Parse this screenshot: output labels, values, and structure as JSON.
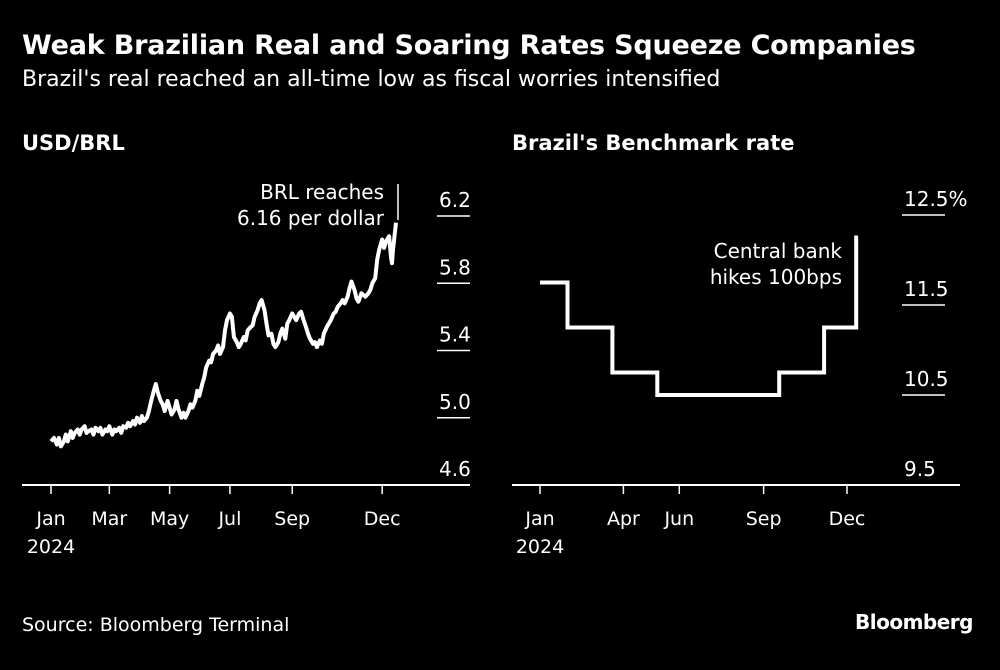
{
  "header": {
    "title": "Weak Brazilian Real and Soaring Rates Squeeze Companies",
    "subtitle": "Brazil's real reached an all-time low as fiscal worries intensified"
  },
  "footer": {
    "source": "Source: Bloomberg Terminal",
    "brand": "Bloomberg"
  },
  "colors": {
    "background": "#000000",
    "line": "#ffffff",
    "text": "#ffffff"
  },
  "chart_data": [
    {
      "id": "usd-brl",
      "type": "line",
      "title": "USD/BRL",
      "xlabel": "",
      "ylabel": "",
      "ylim": [
        4.6,
        6.2
      ],
      "y_ticks": [
        "6.2",
        "5.8",
        "5.4",
        "5.0",
        "4.6"
      ],
      "x_ticks": [
        {
          "label": "Jan",
          "sub": "2024",
          "date": "2024-01-02"
        },
        {
          "label": "Mar",
          "sub": "",
          "date": "2024-03-01"
        },
        {
          "label": "May",
          "sub": "",
          "date": "2024-05-01"
        },
        {
          "label": "Jul",
          "sub": "",
          "date": "2024-07-01"
        },
        {
          "label": "Sep",
          "sub": "",
          "date": "2024-09-02"
        },
        {
          "label": "Dec",
          "sub": "",
          "date": "2024-12-02"
        }
      ],
      "grid": false,
      "annotation": {
        "line1": "BRL reaches",
        "line2": "6.16 per dollar"
      },
      "series": [
        {
          "points": [
            [
              "2024-01-02",
              4.86
            ],
            [
              "2024-01-05",
              4.88
            ],
            [
              "2024-01-08",
              4.84
            ],
            [
              "2024-01-10",
              4.88
            ],
            [
              "2024-01-12",
              4.83
            ],
            [
              "2024-01-15",
              4.86
            ],
            [
              "2024-01-17",
              4.9
            ],
            [
              "2024-01-19",
              4.86
            ],
            [
              "2024-01-22",
              4.92
            ],
            [
              "2024-01-24",
              4.88
            ],
            [
              "2024-01-26",
              4.91
            ],
            [
              "2024-01-29",
              4.93
            ],
            [
              "2024-01-31",
              4.9
            ],
            [
              "2024-02-02",
              4.93
            ],
            [
              "2024-02-05",
              4.95
            ],
            [
              "2024-02-07",
              4.91
            ],
            [
              "2024-02-09",
              4.92
            ],
            [
              "2024-02-12",
              4.93
            ],
            [
              "2024-02-14",
              4.9
            ],
            [
              "2024-02-16",
              4.94
            ],
            [
              "2024-02-19",
              4.92
            ],
            [
              "2024-02-21",
              4.94
            ],
            [
              "2024-02-23",
              4.9
            ],
            [
              "2024-02-26",
              4.93
            ],
            [
              "2024-02-28",
              4.92
            ],
            [
              "2024-03-01",
              4.95
            ],
            [
              "2024-03-04",
              4.9
            ],
            [
              "2024-03-06",
              4.93
            ],
            [
              "2024-03-08",
              4.92
            ],
            [
              "2024-03-11",
              4.94
            ],
            [
              "2024-03-13",
              4.91
            ],
            [
              "2024-03-15",
              4.95
            ],
            [
              "2024-03-18",
              4.94
            ],
            [
              "2024-03-20",
              4.97
            ],
            [
              "2024-03-22",
              4.95
            ],
            [
              "2024-03-25",
              4.98
            ],
            [
              "2024-03-27",
              4.96
            ],
            [
              "2024-03-29",
              5.0
            ],
            [
              "2024-04-01",
              4.97
            ],
            [
              "2024-04-03",
              5.01
            ],
            [
              "2024-04-05",
              4.98
            ],
            [
              "2024-04-08",
              5.0
            ],
            [
              "2024-04-10",
              5.04
            ],
            [
              "2024-04-12",
              5.09
            ],
            [
              "2024-04-15",
              5.16
            ],
            [
              "2024-04-17",
              5.2
            ],
            [
              "2024-04-19",
              5.15
            ],
            [
              "2024-04-22",
              5.1
            ],
            [
              "2024-04-24",
              5.08
            ],
            [
              "2024-04-26",
              5.04
            ],
            [
              "2024-04-29",
              5.1
            ],
            [
              "2024-05-01",
              5.06
            ],
            [
              "2024-05-03",
              5.02
            ],
            [
              "2024-05-06",
              5.05
            ],
            [
              "2024-05-08",
              5.1
            ],
            [
              "2024-05-10",
              5.05
            ],
            [
              "2024-05-13",
              5.0
            ],
            [
              "2024-05-15",
              5.03
            ],
            [
              "2024-05-17",
              5.0
            ],
            [
              "2024-05-20",
              5.04
            ],
            [
              "2024-05-22",
              5.08
            ],
            [
              "2024-05-24",
              5.06
            ],
            [
              "2024-05-27",
              5.1
            ],
            [
              "2024-05-29",
              5.16
            ],
            [
              "2024-05-31",
              5.13
            ],
            [
              "2024-06-03",
              5.2
            ],
            [
              "2024-06-05",
              5.24
            ],
            [
              "2024-06-07",
              5.3
            ],
            [
              "2024-06-10",
              5.34
            ],
            [
              "2024-06-12",
              5.33
            ],
            [
              "2024-06-14",
              5.38
            ],
            [
              "2024-06-17",
              5.4
            ],
            [
              "2024-06-19",
              5.43
            ],
            [
              "2024-06-21",
              5.38
            ],
            [
              "2024-06-24",
              5.42
            ],
            [
              "2024-06-26",
              5.52
            ],
            [
              "2024-06-28",
              5.58
            ],
            [
              "2024-07-01",
              5.62
            ],
            [
              "2024-07-03",
              5.6
            ],
            [
              "2024-07-05",
              5.48
            ],
            [
              "2024-07-08",
              5.45
            ],
            [
              "2024-07-10",
              5.42
            ],
            [
              "2024-07-12",
              5.44
            ],
            [
              "2024-07-15",
              5.48
            ],
            [
              "2024-07-17",
              5.46
            ],
            [
              "2024-07-19",
              5.52
            ],
            [
              "2024-07-22",
              5.54
            ],
            [
              "2024-07-24",
              5.55
            ],
            [
              "2024-07-26",
              5.6
            ],
            [
              "2024-07-29",
              5.64
            ],
            [
              "2024-07-31",
              5.68
            ],
            [
              "2024-08-02",
              5.7
            ],
            [
              "2024-08-05",
              5.64
            ],
            [
              "2024-08-07",
              5.56
            ],
            [
              "2024-08-09",
              5.49
            ],
            [
              "2024-08-12",
              5.5
            ],
            [
              "2024-08-14",
              5.44
            ],
            [
              "2024-08-16",
              5.42
            ],
            [
              "2024-08-19",
              5.45
            ],
            [
              "2024-08-21",
              5.5
            ],
            [
              "2024-08-23",
              5.53
            ],
            [
              "2024-08-26",
              5.47
            ],
            [
              "2024-08-28",
              5.56
            ],
            [
              "2024-08-30",
              5.58
            ],
            [
              "2024-09-02",
              5.62
            ],
            [
              "2024-09-04",
              5.6
            ],
            [
              "2024-09-06",
              5.58
            ],
            [
              "2024-09-09",
              5.62
            ],
            [
              "2024-09-11",
              5.63
            ],
            [
              "2024-09-13",
              5.59
            ],
            [
              "2024-09-16",
              5.54
            ],
            [
              "2024-09-18",
              5.5
            ],
            [
              "2024-09-20",
              5.47
            ],
            [
              "2024-09-23",
              5.44
            ],
            [
              "2024-09-25",
              5.45
            ],
            [
              "2024-09-27",
              5.42
            ],
            [
              "2024-09-30",
              5.46
            ],
            [
              "2024-10-02",
              5.44
            ],
            [
              "2024-10-04",
              5.5
            ],
            [
              "2024-10-07",
              5.54
            ],
            [
              "2024-10-09",
              5.56
            ],
            [
              "2024-10-11",
              5.58
            ],
            [
              "2024-10-14",
              5.62
            ],
            [
              "2024-10-16",
              5.63
            ],
            [
              "2024-10-18",
              5.66
            ],
            [
              "2024-10-21",
              5.68
            ],
            [
              "2024-10-23",
              5.7
            ],
            [
              "2024-10-25",
              5.68
            ],
            [
              "2024-10-28",
              5.72
            ],
            [
              "2024-10-30",
              5.77
            ],
            [
              "2024-11-01",
              5.81
            ],
            [
              "2024-11-04",
              5.76
            ],
            [
              "2024-11-06",
              5.71
            ],
            [
              "2024-11-08",
              5.69
            ],
            [
              "2024-11-11",
              5.74
            ],
            [
              "2024-11-13",
              5.73
            ],
            [
              "2024-11-15",
              5.72
            ],
            [
              "2024-11-18",
              5.74
            ],
            [
              "2024-11-20",
              5.76
            ],
            [
              "2024-11-22",
              5.8
            ],
            [
              "2024-11-25",
              5.83
            ],
            [
              "2024-11-27",
              5.94
            ],
            [
              "2024-11-29",
              6.0
            ],
            [
              "2024-12-02",
              6.06
            ],
            [
              "2024-12-04",
              6.01
            ],
            [
              "2024-12-06",
              6.05
            ],
            [
              "2024-12-09",
              6.08
            ],
            [
              "2024-12-11",
              5.95
            ],
            [
              "2024-12-12",
              5.92
            ],
            [
              "2024-12-13",
              6.0
            ],
            [
              "2024-12-16",
              6.16
            ]
          ]
        }
      ]
    },
    {
      "id": "benchmark-rate",
      "type": "line",
      "title": "Brazil's Benchmark rate",
      "xlabel": "",
      "ylabel": "",
      "ylim": [
        9.5,
        12.5
      ],
      "y_ticks": [
        "12.5%",
        "11.5",
        "10.5",
        "9.5"
      ],
      "x_ticks": [
        {
          "label": "Jan",
          "sub": "2024",
          "date": "2024-01-01"
        },
        {
          "label": "Apr",
          "sub": "",
          "date": "2024-04-01"
        },
        {
          "label": "Jun",
          "sub": "",
          "date": "2024-06-01"
        },
        {
          "label": "Sep",
          "sub": "",
          "date": "2024-09-01"
        },
        {
          "label": "Dec",
          "sub": "",
          "date": "2024-12-01"
        }
      ],
      "grid": false,
      "annotation": {
        "line1": "Central bank",
        "line2": "hikes 100bps"
      },
      "series": [
        {
          "points": [
            [
              "2024-01-01",
              11.75
            ],
            [
              "2024-01-31",
              11.75
            ],
            [
              "2024-01-31",
              11.25
            ],
            [
              "2024-03-20",
              11.25
            ],
            [
              "2024-03-20",
              10.75
            ],
            [
              "2024-05-08",
              10.75
            ],
            [
              "2024-05-08",
              10.5
            ],
            [
              "2024-09-18",
              10.5
            ],
            [
              "2024-09-18",
              10.75
            ],
            [
              "2024-11-06",
              10.75
            ],
            [
              "2024-11-06",
              11.25
            ],
            [
              "2024-12-11",
              11.25
            ],
            [
              "2024-12-11",
              12.25
            ],
            [
              "2024-12-13",
              12.25
            ]
          ]
        }
      ]
    }
  ]
}
